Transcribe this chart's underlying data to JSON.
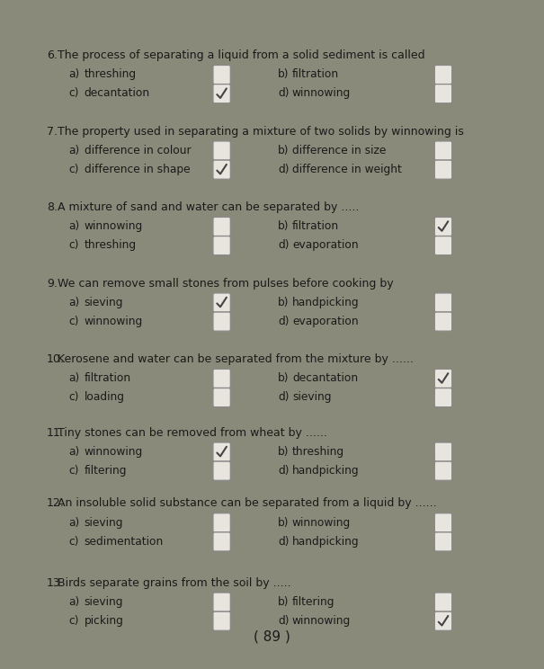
{
  "bg_color": "#8a8a7a",
  "page_bg": "#f0ede6",
  "text_color": "#1a1a1a",
  "questions": [
    {
      "num": "6.",
      "text": "The process of separating a liquid from a solid sediment is called",
      "options": [
        {
          "label": "a)",
          "text": "threshing",
          "checked": false
        },
        {
          "label": "b)",
          "text": "filtration",
          "checked": false
        },
        {
          "label": "c)",
          "text": "decantation",
          "checked": true
        },
        {
          "label": "d)",
          "text": "winnowing",
          "checked": false
        }
      ]
    },
    {
      "num": "7.",
      "text": "The property used in separating a mixture of two solids by winnowing is",
      "options": [
        {
          "label": "a)",
          "text": "difference in colour",
          "checked": false
        },
        {
          "label": "b)",
          "text": "difference in size",
          "checked": false
        },
        {
          "label": "c)",
          "text": "difference in shape",
          "checked": true
        },
        {
          "label": "d)",
          "text": "difference in weight",
          "checked": false
        }
      ]
    },
    {
      "num": "8.",
      "text": "A mixture of sand and water can be separated by .....",
      "options": [
        {
          "label": "a)",
          "text": "winnowing",
          "checked": false
        },
        {
          "label": "b)",
          "text": "filtration",
          "checked": true
        },
        {
          "label": "c)",
          "text": "threshing",
          "checked": false
        },
        {
          "label": "d)",
          "text": "evaporation",
          "checked": false
        }
      ]
    },
    {
      "num": "9.",
      "text": "We can remove small stones from pulses before cooking by",
      "options": [
        {
          "label": "a)",
          "text": "sieving",
          "checked": true
        },
        {
          "label": "b)",
          "text": "handpicking",
          "checked": false
        },
        {
          "label": "c)",
          "text": "winnowing",
          "checked": false
        },
        {
          "label": "d)",
          "text": "evaporation",
          "checked": false
        }
      ]
    },
    {
      "num": "10.",
      "text": "Kerosene and water can be separated from the mixture by ......",
      "options": [
        {
          "label": "a)",
          "text": "filtration",
          "checked": false
        },
        {
          "label": "b)",
          "text": "decantation",
          "checked": true
        },
        {
          "label": "c)",
          "text": "loading",
          "checked": false
        },
        {
          "label": "d)",
          "text": "sieving",
          "checked": false
        }
      ]
    },
    {
      "num": "11.",
      "text": "Tiny stones can be removed from wheat by ......",
      "options": [
        {
          "label": "a)",
          "text": "winnowing",
          "checked": true
        },
        {
          "label": "b)",
          "text": "threshing",
          "checked": false
        },
        {
          "label": "c)",
          "text": "filtering",
          "checked": false
        },
        {
          "label": "d)",
          "text": "handpicking",
          "checked": false
        }
      ]
    },
    {
      "num": "12.",
      "text": "An insoluble solid substance can be separated from a liquid by ......",
      "options": [
        {
          "label": "a)",
          "text": "sieving",
          "checked": false
        },
        {
          "label": "b)",
          "text": "winnowing",
          "checked": false
        },
        {
          "label": "c)",
          "text": "sedimentation",
          "checked": false
        },
        {
          "label": "d)",
          "text": "handpicking",
          "checked": false
        }
      ]
    },
    {
      "num": "13.",
      "text": "Birds separate grains from the soil by .....",
      "options": [
        {
          "label": "a)",
          "text": "sieving",
          "checked": false
        },
        {
          "label": "b)",
          "text": "filtering",
          "checked": false
        },
        {
          "label": "c)",
          "text": "picking",
          "checked": false
        },
        {
          "label": "d)",
          "text": "winnowing",
          "checked": true
        }
      ]
    }
  ],
  "page_number": "89"
}
